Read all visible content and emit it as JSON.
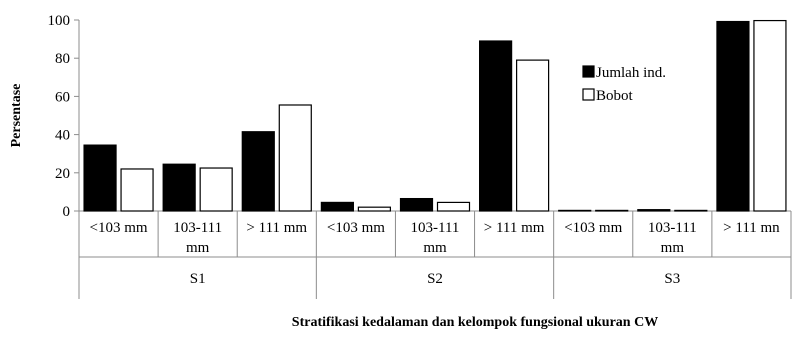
{
  "chart_data": {
    "type": "bar",
    "title": "",
    "xlabel": "Stratifikasi kedalaman dan kelompok fungsional ukuran CW",
    "ylabel": "Persentase",
    "ylim": [
      0,
      100
    ],
    "yticks": [
      0,
      20,
      40,
      60,
      80,
      100
    ],
    "grid": false,
    "legend_position": "right",
    "groups": [
      "S1",
      "S2",
      "S3"
    ],
    "categories": [
      [
        "<103 mm"
      ],
      [
        "103-111",
        "mm"
      ],
      [
        "> 111 mm"
      ],
      [
        "<103 mm"
      ],
      [
        "103-111",
        "mm"
      ],
      [
        "> 111 mm"
      ],
      [
        "<103 mm"
      ],
      [
        "103-111",
        "mm"
      ],
      [
        "> 111 mn"
      ]
    ],
    "series": [
      {
        "name": "Jumlah ind.",
        "color": "#000000",
        "values": [
          34.5,
          24.5,
          41.5,
          4.5,
          6.5,
          89.0,
          0.3,
          0.7,
          99.2
        ]
      },
      {
        "name": "Bobot",
        "color": "#ffffff",
        "values": [
          22.0,
          22.5,
          55.5,
          2.0,
          4.5,
          79.0,
          0.1,
          0.3,
          99.7
        ]
      }
    ]
  }
}
